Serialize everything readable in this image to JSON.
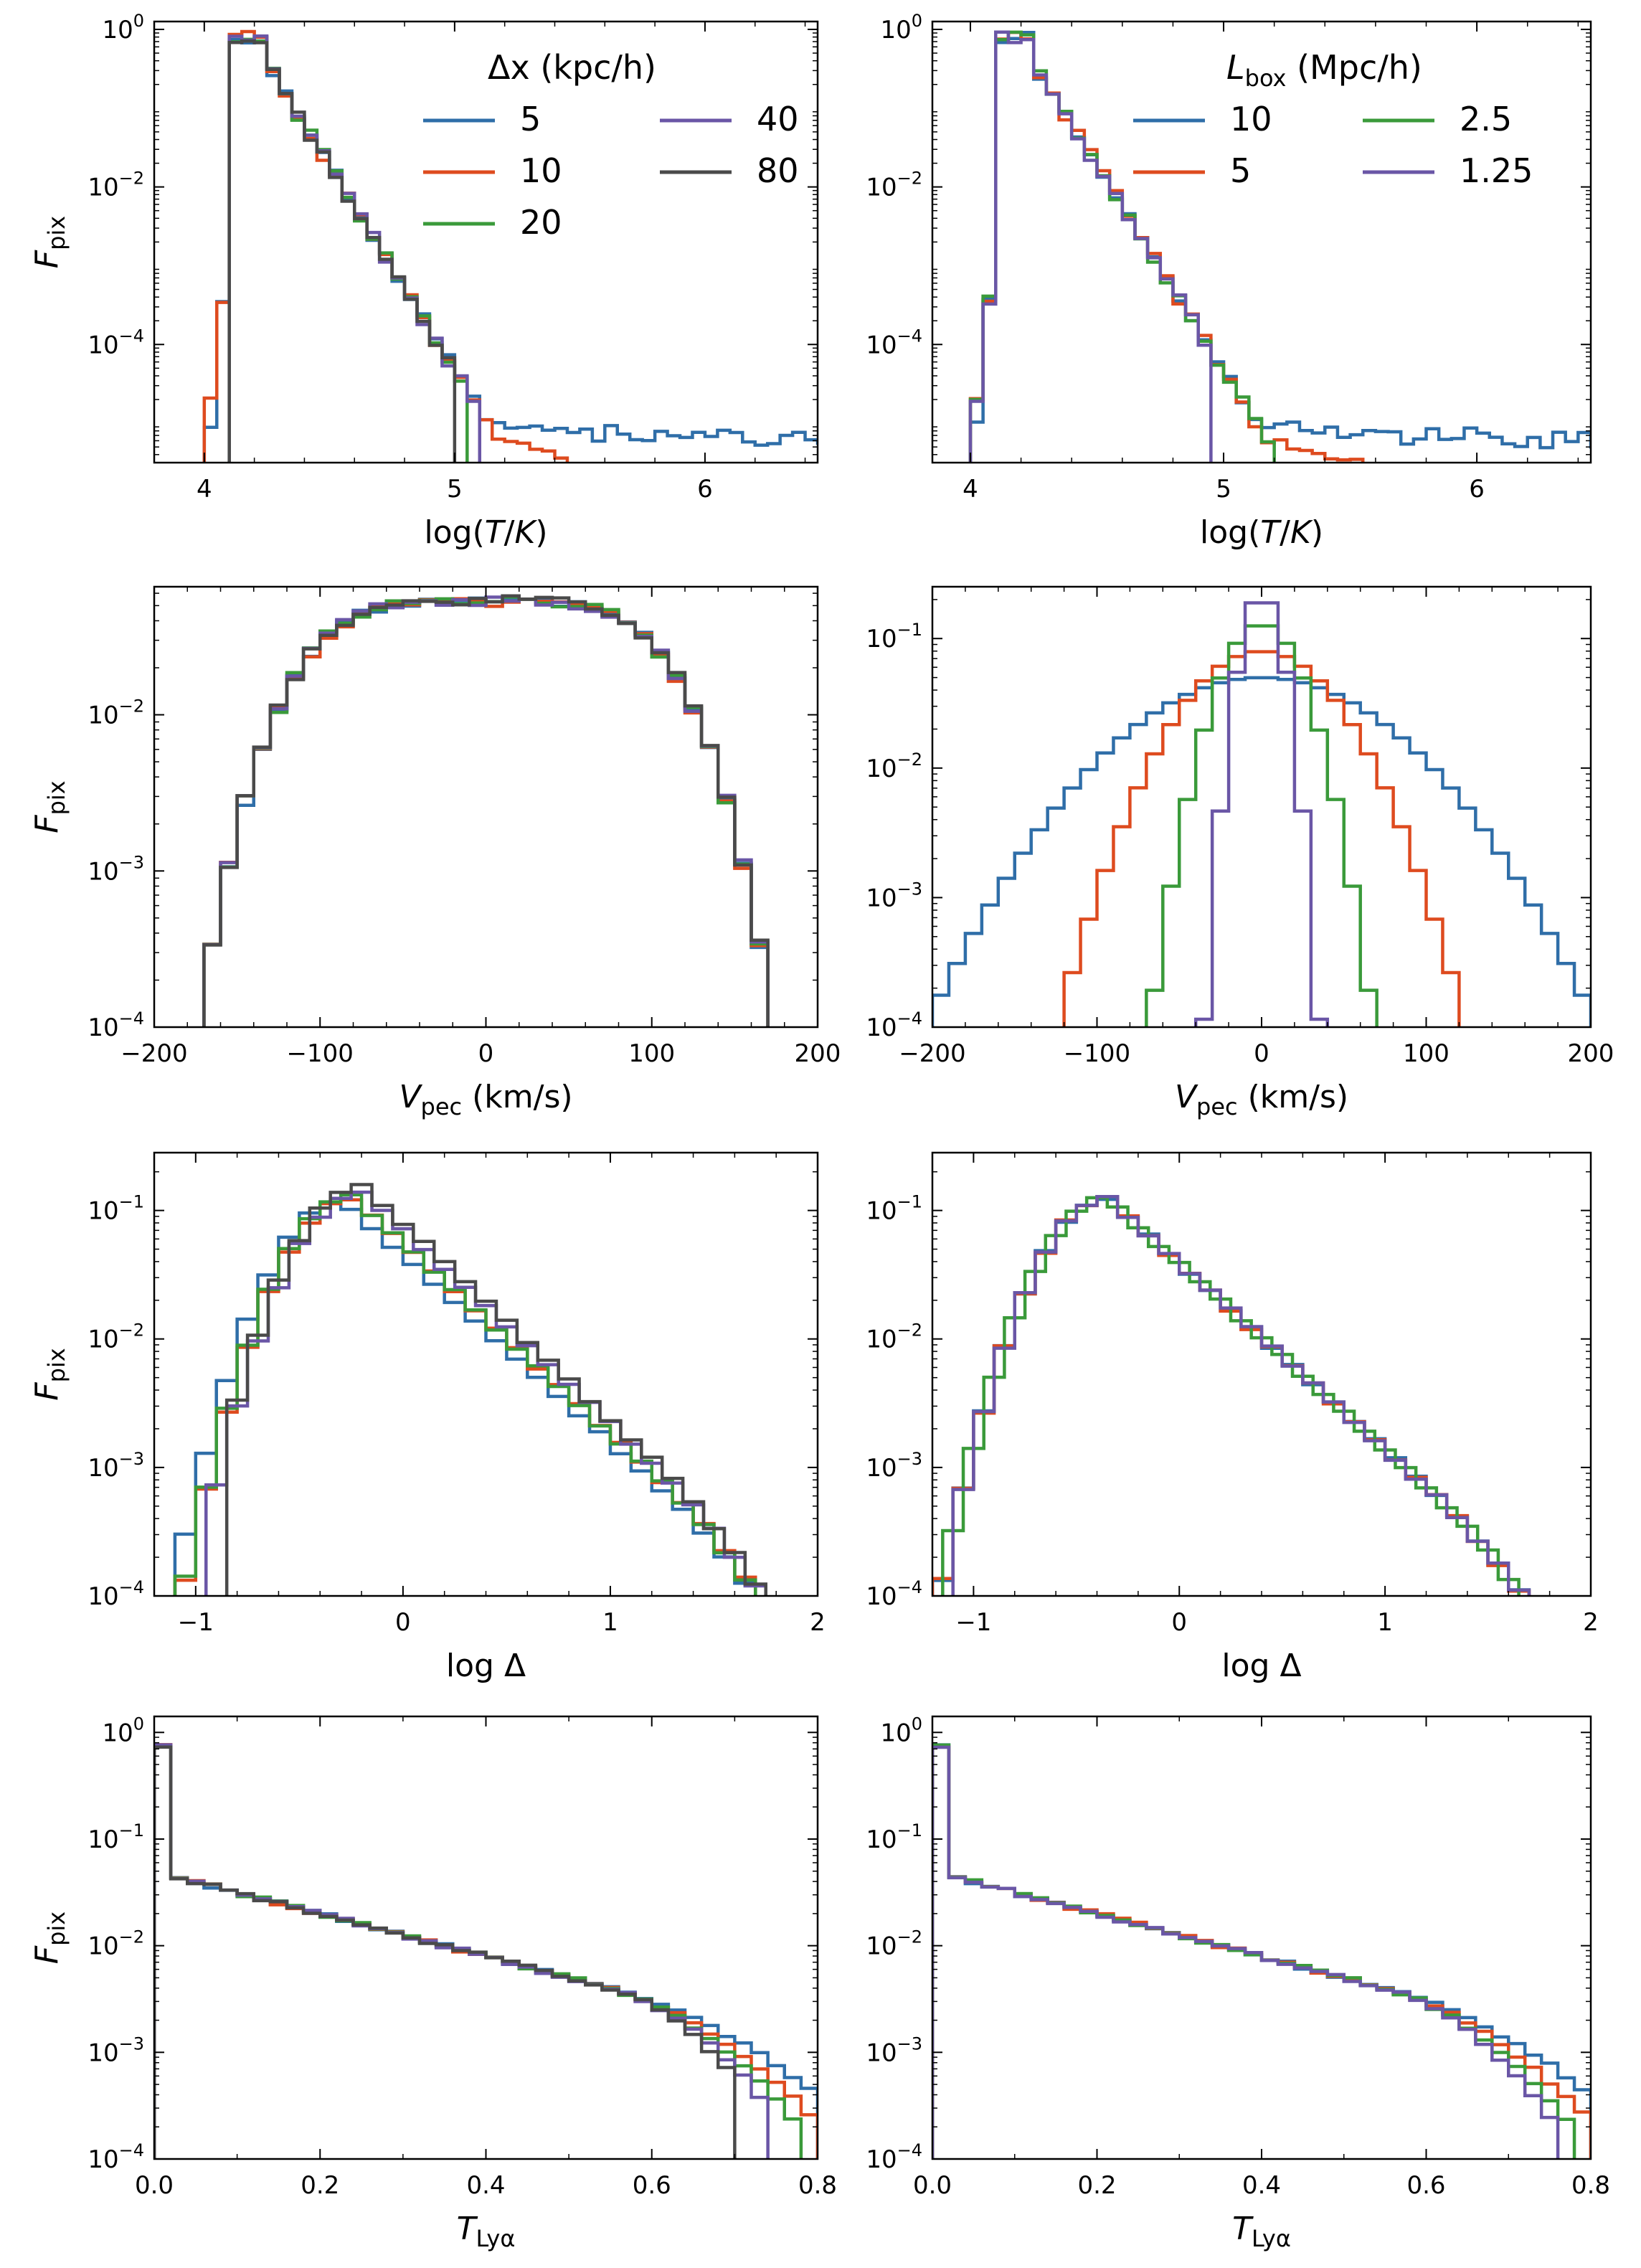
{
  "figure": {
    "bin_styles": {
      "linewidth_note": "step histograms"
    }
  },
  "series_colors": {
    "blue": "#2f6ea8",
    "red": "#de4b1f",
    "green": "#3a9a3a",
    "purple": "#6a56a6",
    "gray": "#4a4a4a"
  },
  "legends": {
    "left": {
      "title": "Δx (kpc/h)",
      "entries": [
        {
          "label": "5",
          "color": "#2f6ea8"
        },
        {
          "label": "10",
          "color": "#de4b1f"
        },
        {
          "label": "20",
          "color": "#3a9a3a"
        },
        {
          "label": "40",
          "color": "#6a56a6"
        },
        {
          "label": "80",
          "color": "#4a4a4a"
        }
      ]
    },
    "right": {
      "title": "L_box (Mpc/h)",
      "entries": [
        {
          "label": "10",
          "color": "#2f6ea8"
        },
        {
          "label": "5",
          "color": "#de4b1f"
        },
        {
          "label": "2.5",
          "color": "#3a9a3a"
        },
        {
          "label": "1.25",
          "color": "#6a56a6"
        }
      ]
    }
  },
  "chart_data": [
    {
      "id": "temp-left",
      "type": "step-histogram",
      "xlabel": "log(T/K)",
      "ylabel": "F_pix",
      "xlim": [
        3.8,
        6.45
      ],
      "ylim_log": [
        -5.5,
        0.1
      ],
      "xticks": [
        4,
        5,
        6
      ],
      "yticks": [
        0,
        -2,
        -4
      ],
      "series": [
        {
          "name": "5",
          "color": "#2f6ea8",
          "start": 4.0,
          "shape": "temp-hot"
        },
        {
          "name": "10",
          "color": "#de4b1f",
          "start": 4.0,
          "shape": "temp-cold-tail",
          "cutoff": 5.45
        },
        {
          "name": "20",
          "color": "#3a9a3a",
          "start": 4.1,
          "shape": "temp-cold",
          "cutoff": 5.0
        },
        {
          "name": "40",
          "color": "#6a56a6",
          "start": 4.1,
          "shape": "temp-cold",
          "cutoff": 5.05
        },
        {
          "name": "80",
          "color": "#4a4a4a",
          "start": 4.1,
          "shape": "temp-cold",
          "cutoff": 4.98
        }
      ]
    },
    {
      "id": "temp-right",
      "type": "step-histogram",
      "xlabel": "log(T/K)",
      "ylabel": "",
      "xlim": [
        3.85,
        6.45
      ],
      "ylim_log": [
        -5.5,
        0.1
      ],
      "xticks": [
        4,
        5,
        6
      ],
      "yticks": [
        0,
        -2,
        -4
      ],
      "series": [
        {
          "name": "10",
          "color": "#2f6ea8",
          "start": 4.0,
          "shape": "temp-hot"
        },
        {
          "name": "5",
          "color": "#de4b1f",
          "start": 3.95,
          "shape": "temp-cold-tail",
          "cutoff": 5.55
        },
        {
          "name": "2.5",
          "color": "#3a9a3a",
          "start": 3.95,
          "shape": "temp-cold",
          "cutoff": 5.15
        },
        {
          "name": "1.25",
          "color": "#6a56a6",
          "start": 3.9,
          "shape": "temp-cold",
          "cutoff": 4.9
        }
      ]
    },
    {
      "id": "vpec-left",
      "type": "step-histogram",
      "xlabel": "V_pec (km/s)",
      "ylabel": "F_pix",
      "xlim": [
        -200,
        200
      ],
      "ylim_log": [
        -4,
        -1.18
      ],
      "xticks": [
        -200,
        -100,
        0,
        100,
        200
      ],
      "yticks": [
        -2,
        -3,
        -4
      ],
      "series": [
        {
          "name": "5",
          "color": "#2f6ea8",
          "spread": 1
        },
        {
          "name": "10",
          "color": "#de4b1f",
          "spread": 1
        },
        {
          "name": "20",
          "color": "#3a9a3a",
          "spread": 1
        },
        {
          "name": "40",
          "color": "#6a56a6",
          "spread": 1
        },
        {
          "name": "80",
          "color": "#4a4a4a",
          "spread": 1
        }
      ]
    },
    {
      "id": "vpec-right",
      "type": "step-histogram",
      "xlabel": "V_pec (km/s)",
      "ylabel": "",
      "xlim": [
        -200,
        200
      ],
      "ylim_log": [
        -4,
        -0.6
      ],
      "xticks": [
        -200,
        -100,
        0,
        100,
        200
      ],
      "yticks": [
        -1,
        -2,
        -3,
        -4
      ],
      "series": [
        {
          "name": "10",
          "color": "#2f6ea8",
          "sigma": 58,
          "peak": 0.05
        },
        {
          "name": "5",
          "color": "#de4b1f",
          "sigma": 34,
          "peak": 0.08
        },
        {
          "name": "2.5",
          "color": "#3a9a3a",
          "sigma": 18,
          "peak": 0.13
        },
        {
          "name": "1.25",
          "color": "#6a56a6",
          "sigma": 9,
          "peak": 0.22
        }
      ]
    },
    {
      "id": "delta-left",
      "type": "step-histogram",
      "xlabel": "log Δ",
      "ylabel": "F_pix",
      "xlim": [
        -1.2,
        2.0
      ],
      "ylim_log": [
        -4,
        -0.55
      ],
      "xticks": [
        -1,
        0,
        1,
        2
      ],
      "yticks": [
        -1,
        -2,
        -3,
        -4
      ],
      "series": [
        {
          "name": "5",
          "color": "#2f6ea8",
          "xmin": -1.2,
          "peak_x": -0.3,
          "peak": 0.12
        },
        {
          "name": "10",
          "color": "#de4b1f",
          "xmin": -1.1,
          "peak_x": -0.25,
          "peak": 0.125
        },
        {
          "name": "20",
          "color": "#3a9a3a",
          "xmin": -1.1,
          "peak_x": -0.25,
          "peak": 0.13
        },
        {
          "name": "40",
          "color": "#6a56a6",
          "xmin": -0.95,
          "peak_x": -0.2,
          "peak": 0.14
        },
        {
          "name": "80",
          "color": "#4a4a4a",
          "xmin": -0.85,
          "peak_x": -0.2,
          "peak": 0.155
        }
      ]
    },
    {
      "id": "delta-right",
      "type": "step-histogram",
      "xlabel": "log Δ",
      "ylabel": "",
      "xlim": [
        -1.2,
        2.0
      ],
      "ylim_log": [
        -4,
        -0.55
      ],
      "xticks": [
        -1,
        0,
        1,
        2
      ],
      "yticks": [
        -1,
        -2,
        -3,
        -4
      ],
      "series": [
        {
          "name": "10",
          "color": "#2f6ea8",
          "xmin": -1.2,
          "peak_x": -0.35,
          "peak": 0.125
        },
        {
          "name": "5",
          "color": "#de4b1f",
          "xmin": -1.2,
          "peak_x": -0.35,
          "peak": 0.125
        },
        {
          "name": "2.5",
          "color": "#3a9a3a",
          "xmin": -1.15,
          "peak_x": -0.35,
          "peak": 0.125
        },
        {
          "name": "1.25",
          "color": "#6a56a6",
          "xmin": -1.1,
          "peak_x": -0.35,
          "peak": 0.125
        }
      ]
    },
    {
      "id": "tlya-left",
      "type": "step-histogram",
      "xlabel": "T_Lyα",
      "ylabel": "F_pix",
      "xlim": [
        0,
        0.8
      ],
      "ylim_log": [
        -4,
        0.15
      ],
      "xticks": [
        0.0,
        0.2,
        0.4,
        0.6,
        0.8
      ],
      "yticks": [
        0,
        -1,
        -2,
        -3,
        -4
      ],
      "series": [
        {
          "name": "5",
          "color": "#2f6ea8",
          "end": 0.8
        },
        {
          "name": "10",
          "color": "#de4b1f",
          "end": 0.79
        },
        {
          "name": "20",
          "color": "#3a9a3a",
          "end": 0.77
        },
        {
          "name": "40",
          "color": "#6a56a6",
          "end": 0.74
        },
        {
          "name": "80",
          "color": "#4a4a4a",
          "end": 0.7
        }
      ]
    },
    {
      "id": "tlya-right",
      "type": "step-histogram",
      "xlabel": "T_Lyα",
      "ylabel": "",
      "xlim": [
        0,
        0.8
      ],
      "ylim_log": [
        -4,
        0.15
      ],
      "xticks": [
        0.0,
        0.2,
        0.4,
        0.6,
        0.8
      ],
      "yticks": [
        0,
        -1,
        -2,
        -3,
        -4
      ],
      "series": [
        {
          "name": "10",
          "color": "#2f6ea8",
          "end": 0.8
        },
        {
          "name": "5",
          "color": "#de4b1f",
          "end": 0.79
        },
        {
          "name": "2.5",
          "color": "#3a9a3a",
          "end": 0.78
        },
        {
          "name": "1.25",
          "color": "#6a56a6",
          "end": 0.76
        }
      ]
    }
  ]
}
